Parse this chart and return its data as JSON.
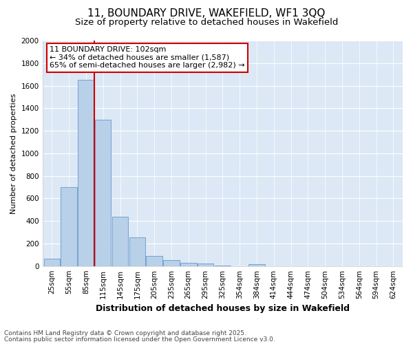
{
  "title_line1": "11, BOUNDARY DRIVE, WAKEFIELD, WF1 3QQ",
  "title_line2": "Size of property relative to detached houses in Wakefield",
  "xlabel": "Distribution of detached houses by size in Wakefield",
  "ylabel": "Number of detached properties",
  "bar_labels": [
    "25sqm",
    "55sqm",
    "85sqm",
    "115sqm",
    "145sqm",
    "175sqm",
    "205sqm",
    "235sqm",
    "265sqm",
    "295sqm",
    "325sqm",
    "354sqm",
    "384sqm",
    "414sqm",
    "444sqm",
    "474sqm",
    "504sqm",
    "534sqm",
    "564sqm",
    "594sqm",
    "624sqm"
  ],
  "bar_values": [
    65,
    700,
    1650,
    1300,
    440,
    255,
    90,
    55,
    30,
    20,
    5,
    0,
    15,
    0,
    0,
    0,
    0,
    0,
    0,
    0,
    0
  ],
  "bar_color": "#b8d0e8",
  "bar_edgecolor": "#6699cc",
  "vline_color": "#cc0000",
  "vline_position": 2.5,
  "ylim": [
    0,
    2000
  ],
  "yticks": [
    0,
    200,
    400,
    600,
    800,
    1000,
    1200,
    1400,
    1600,
    1800,
    2000
  ],
  "annotation_text": "11 BOUNDARY DRIVE: 102sqm\n← 34% of detached houses are smaller (1,587)\n65% of semi-detached houses are larger (2,982) →",
  "annotation_box_facecolor": "#ffffff",
  "annotation_box_edgecolor": "#cc0000",
  "footer_line1": "Contains HM Land Registry data © Crown copyright and database right 2025.",
  "footer_line2": "Contains public sector information licensed under the Open Government Licence v3.0.",
  "fig_facecolor": "#ffffff",
  "plot_facecolor": "#dce8f5",
  "grid_color": "#ffffff",
  "title_fontsize": 11,
  "subtitle_fontsize": 9.5,
  "ylabel_fontsize": 8,
  "xlabel_fontsize": 9,
  "tick_fontsize": 7.5,
  "annotation_fontsize": 8,
  "footer_fontsize": 6.5
}
